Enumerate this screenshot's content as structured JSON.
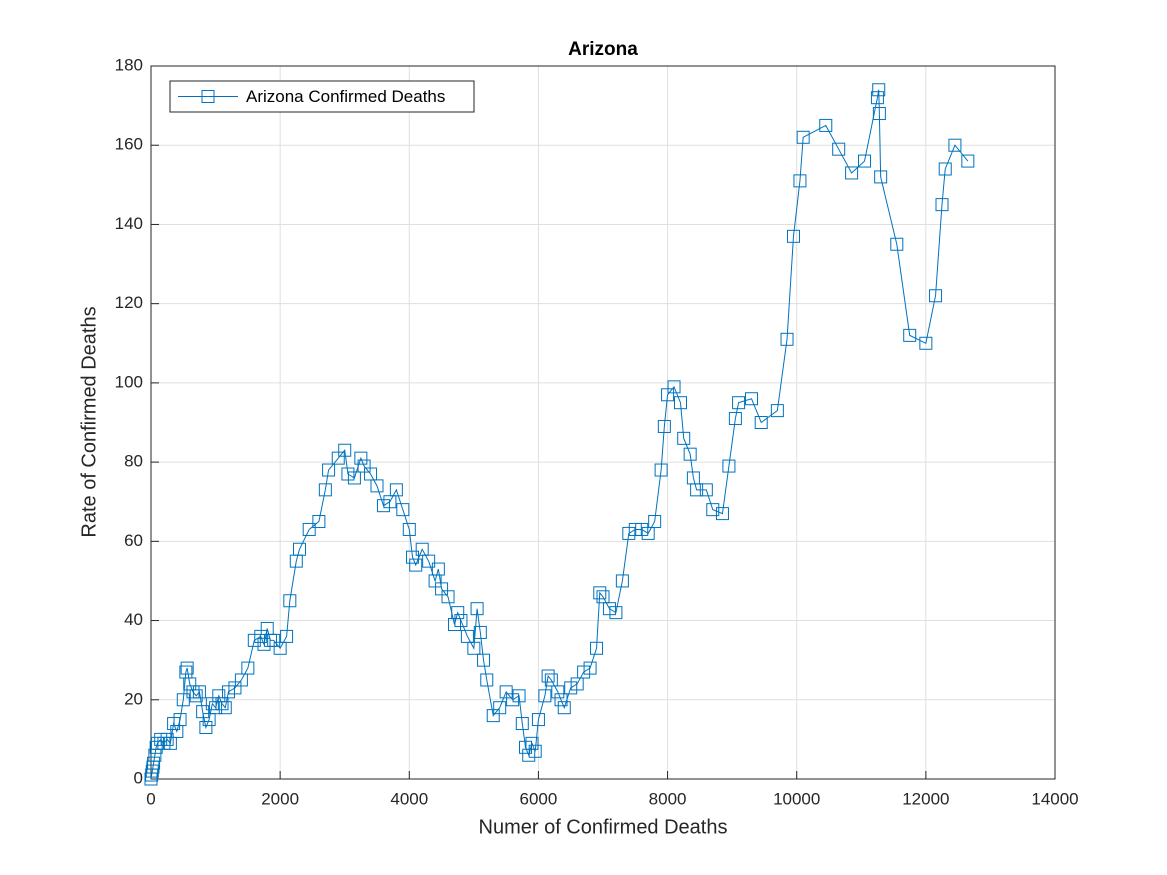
{
  "chart_data": {
    "type": "line",
    "title": "Arizona",
    "x_label": "Numer of Confirmed Deaths",
    "y_label": "Rate of Confirmed Deaths",
    "xlim": [
      0,
      14000
    ],
    "ylim": [
      0,
      180
    ],
    "xticks": [
      0,
      2000,
      4000,
      6000,
      8000,
      10000,
      12000,
      14000
    ],
    "yticks": [
      0,
      20,
      40,
      60,
      80,
      100,
      120,
      140,
      160,
      180
    ],
    "grid": true,
    "legend": "northwest",
    "marker": "square",
    "series": [
      {
        "name": "Arizona Confirmed Deaths",
        "color": "#0072bd",
        "x": [
          0,
          10,
          20,
          30,
          40,
          60,
          80,
          100,
          150,
          200,
          250,
          300,
          350,
          400,
          450,
          500,
          540,
          560,
          600,
          650,
          700,
          750,
          800,
          850,
          900,
          950,
          1000,
          1050,
          1100,
          1150,
          1200,
          1300,
          1400,
          1500,
          1600,
          1700,
          1750,
          1800,
          1850,
          1900,
          2000,
          2100,
          2150,
          2250,
          2300,
          2450,
          2600,
          2700,
          2750,
          2900,
          3000,
          3050,
          3150,
          3250,
          3300,
          3400,
          3500,
          3600,
          3700,
          3800,
          3900,
          4000,
          4050,
          4100,
          4200,
          4300,
          4400,
          4450,
          4500,
          4600,
          4700,
          4750,
          4800,
          4900,
          5000,
          5050,
          5100,
          5150,
          5200,
          5300,
          5400,
          5500,
          5600,
          5700,
          5750,
          5800,
          5850,
          5900,
          5950,
          6000,
          6100,
          6150,
          6200,
          6300,
          6350,
          6400,
          6500,
          6600,
          6700,
          6800,
          6900,
          6950,
          7000,
          7100,
          7200,
          7300,
          7400,
          7500,
          7600,
          7700,
          7800,
          7900,
          7950,
          8000,
          8100,
          8200,
          8250,
          8350,
          8400,
          8450,
          8600,
          8700,
          8850,
          8950,
          9050,
          9100,
          9300,
          9450,
          9700,
          9850,
          9950,
          10050,
          10100,
          10450,
          10650,
          10850,
          11050,
          11250,
          11270,
          11280,
          11300,
          11550,
          11750,
          12000,
          12150,
          12250,
          12300,
          12450,
          12650
        ],
        "values": [
          0,
          1,
          2,
          3,
          4,
          6,
          8,
          9,
          10,
          9,
          10,
          9,
          14,
          12,
          15,
          20,
          27,
          28,
          24,
          22,
          21,
          22,
          17,
          13,
          15,
          19,
          18,
          21,
          19,
          18,
          22,
          23,
          25,
          28,
          35,
          36,
          34,
          38,
          35,
          35,
          33,
          36,
          45,
          55,
          58,
          63,
          65,
          73,
          78,
          81,
          83,
          77,
          76,
          81,
          79,
          77,
          74,
          69,
          70,
          73,
          68,
          63,
          56,
          54,
          58,
          55,
          50,
          53,
          48,
          46,
          39,
          42,
          40,
          36,
          33,
          43,
          37,
          30,
          25,
          16,
          18,
          22,
          20,
          21,
          14,
          8,
          6,
          9,
          7,
          15,
          21,
          26,
          25,
          22,
          20,
          18,
          23,
          24,
          27,
          28,
          33,
          47,
          46,
          43,
          42,
          50,
          62,
          63,
          63,
          62,
          65,
          78,
          89,
          97,
          99,
          95,
          86,
          82,
          76,
          73,
          73,
          68,
          67,
          79,
          91,
          95,
          96,
          90,
          93,
          111,
          137,
          151,
          162,
          165,
          159,
          153,
          156,
          172,
          174,
          168,
          152,
          135,
          112,
          110,
          122,
          145,
          154,
          160,
          156
        ]
      }
    ]
  }
}
